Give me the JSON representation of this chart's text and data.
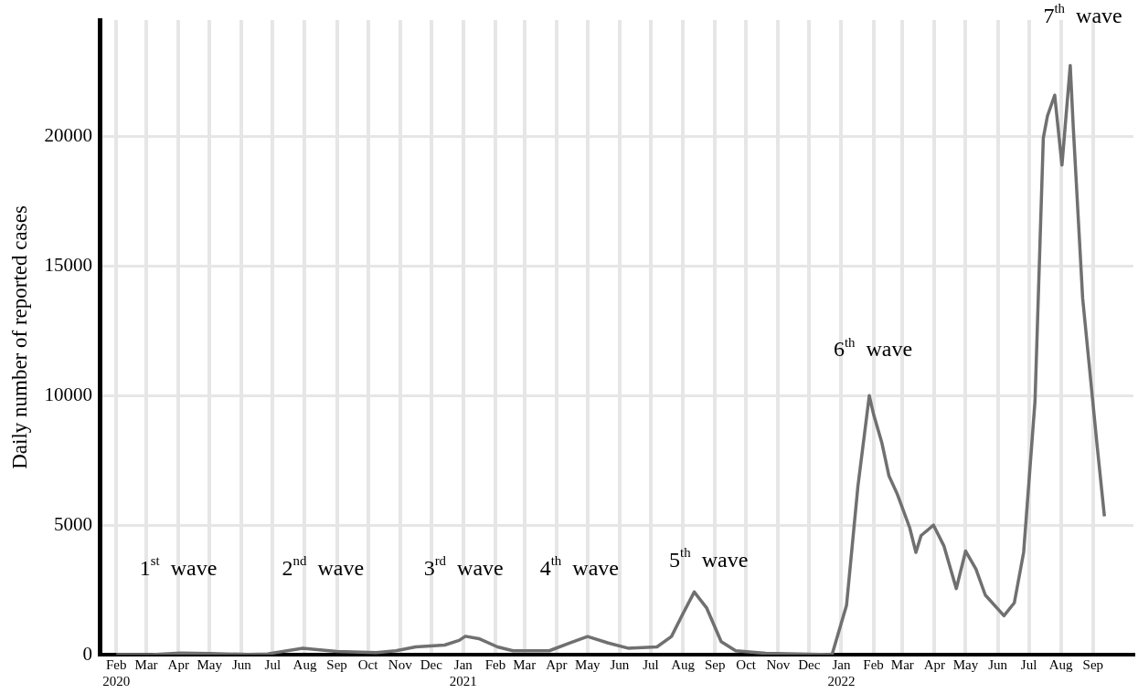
{
  "chart_data": {
    "type": "line",
    "ylabel": "Daily number of reported cases",
    "xlim": [
      "2020-01-16",
      "2022-10-10"
    ],
    "ylim": [
      0,
      24500
    ],
    "yticks": [
      0,
      5000,
      10000,
      15000,
      20000
    ],
    "xticks": [
      {
        "value": "2020-02-01",
        "label": "Feb\n2020"
      },
      {
        "value": "2020-03-01",
        "label": "Mar"
      },
      {
        "value": "2020-04-01",
        "label": "Apr"
      },
      {
        "value": "2020-05-01",
        "label": "May"
      },
      {
        "value": "2020-06-01",
        "label": "Jun"
      },
      {
        "value": "2020-07-01",
        "label": "Jul"
      },
      {
        "value": "2020-08-01",
        "label": "Aug"
      },
      {
        "value": "2020-09-01",
        "label": "Sep"
      },
      {
        "value": "2020-10-01",
        "label": "Oct"
      },
      {
        "value": "2020-11-01",
        "label": "Nov"
      },
      {
        "value": "2020-12-01",
        "label": "Dec"
      },
      {
        "value": "2021-01-01",
        "label": "Jan\n2021"
      },
      {
        "value": "2021-02-01",
        "label": "Feb"
      },
      {
        "value": "2021-03-01",
        "label": "Mar"
      },
      {
        "value": "2021-04-01",
        "label": "Apr"
      },
      {
        "value": "2021-05-01",
        "label": "May"
      },
      {
        "value": "2021-06-01",
        "label": "Jun"
      },
      {
        "value": "2021-07-01",
        "label": "Jul"
      },
      {
        "value": "2021-08-01",
        "label": "Aug"
      },
      {
        "value": "2021-09-01",
        "label": "Sep"
      },
      {
        "value": "2021-10-01",
        "label": "Oct"
      },
      {
        "value": "2021-11-01",
        "label": "Nov"
      },
      {
        "value": "2021-12-01",
        "label": "Dec"
      },
      {
        "value": "2022-01-01",
        "label": "Jan\n2022"
      },
      {
        "value": "2022-02-01",
        "label": "Feb"
      },
      {
        "value": "2022-03-01",
        "label": "Mar"
      },
      {
        "value": "2022-04-01",
        "label": "Apr"
      },
      {
        "value": "2022-05-01",
        "label": "May"
      },
      {
        "value": "2022-06-01",
        "label": "Jun"
      },
      {
        "value": "2022-07-01",
        "label": "Jul"
      },
      {
        "value": "2022-08-01",
        "label": "Aug"
      },
      {
        "value": "2022-09-01",
        "label": "Sep"
      }
    ],
    "grid": true,
    "legend": false,
    "x": [
      "2020-02-01",
      "2020-03-06",
      "2020-04-03",
      "2020-05-01",
      "2020-06-08",
      "2020-06-26",
      "2020-07-30",
      "2020-09-01",
      "2020-10-09",
      "2020-10-28",
      "2020-11-16",
      "2020-12-14",
      "2020-12-28",
      "2021-01-03",
      "2021-01-16",
      "2021-02-03",
      "2021-02-18",
      "2021-03-25",
      "2021-04-14",
      "2021-05-01",
      "2021-05-21",
      "2021-06-09",
      "2021-07-07",
      "2021-07-21",
      "2021-07-31",
      "2021-08-12",
      "2021-08-24",
      "2021-09-07",
      "2021-09-21",
      "2021-10-20",
      "2021-11-20",
      "2021-12-23",
      "2022-01-06",
      "2022-01-17",
      "2022-01-28",
      "2022-02-01",
      "2022-02-09",
      "2022-02-16",
      "2022-02-24",
      "2022-03-08",
      "2022-03-14",
      "2022-03-19",
      "2022-03-31",
      "2022-04-10",
      "2022-04-22",
      "2022-05-01",
      "2022-05-11",
      "2022-05-20",
      "2022-06-07",
      "2022-06-17",
      "2022-06-26",
      "2022-07-07",
      "2022-07-15",
      "2022-07-19",
      "2022-07-26",
      "2022-08-02",
      "2022-08-10",
      "2022-08-13",
      "2022-08-22",
      "2022-09-05",
      "2022-09-12"
    ],
    "series": [
      {
        "color": "#707070",
        "values": [
          0,
          0,
          60,
          40,
          10,
          30,
          250,
          120,
          80,
          150,
          300,
          370,
          550,
          710,
          620,
          300,
          150,
          150,
          450,
          700,
          450,
          250,
          300,
          700,
          1500,
          2420,
          1800,
          500,
          150,
          50,
          30,
          0,
          1900,
          6500,
          10000,
          9300,
          8200,
          6900,
          6200,
          4900,
          3950,
          4600,
          5000,
          4200,
          2550,
          4000,
          3300,
          2300,
          1500,
          2000,
          3950,
          9800,
          19950,
          20800,
          21600,
          18900,
          22750,
          20300,
          13750,
          8050,
          5340
        ]
      }
    ],
    "annotations": [
      "1$^{st}$  wave",
      "2$^{nd}$  wave",
      "3$^{rd}$  wave",
      "4$^{th}$  wave",
      "5$^{th}$  wave",
      "6$^{th}$  wave",
      "7$^{th}$  wave"
    ]
  }
}
